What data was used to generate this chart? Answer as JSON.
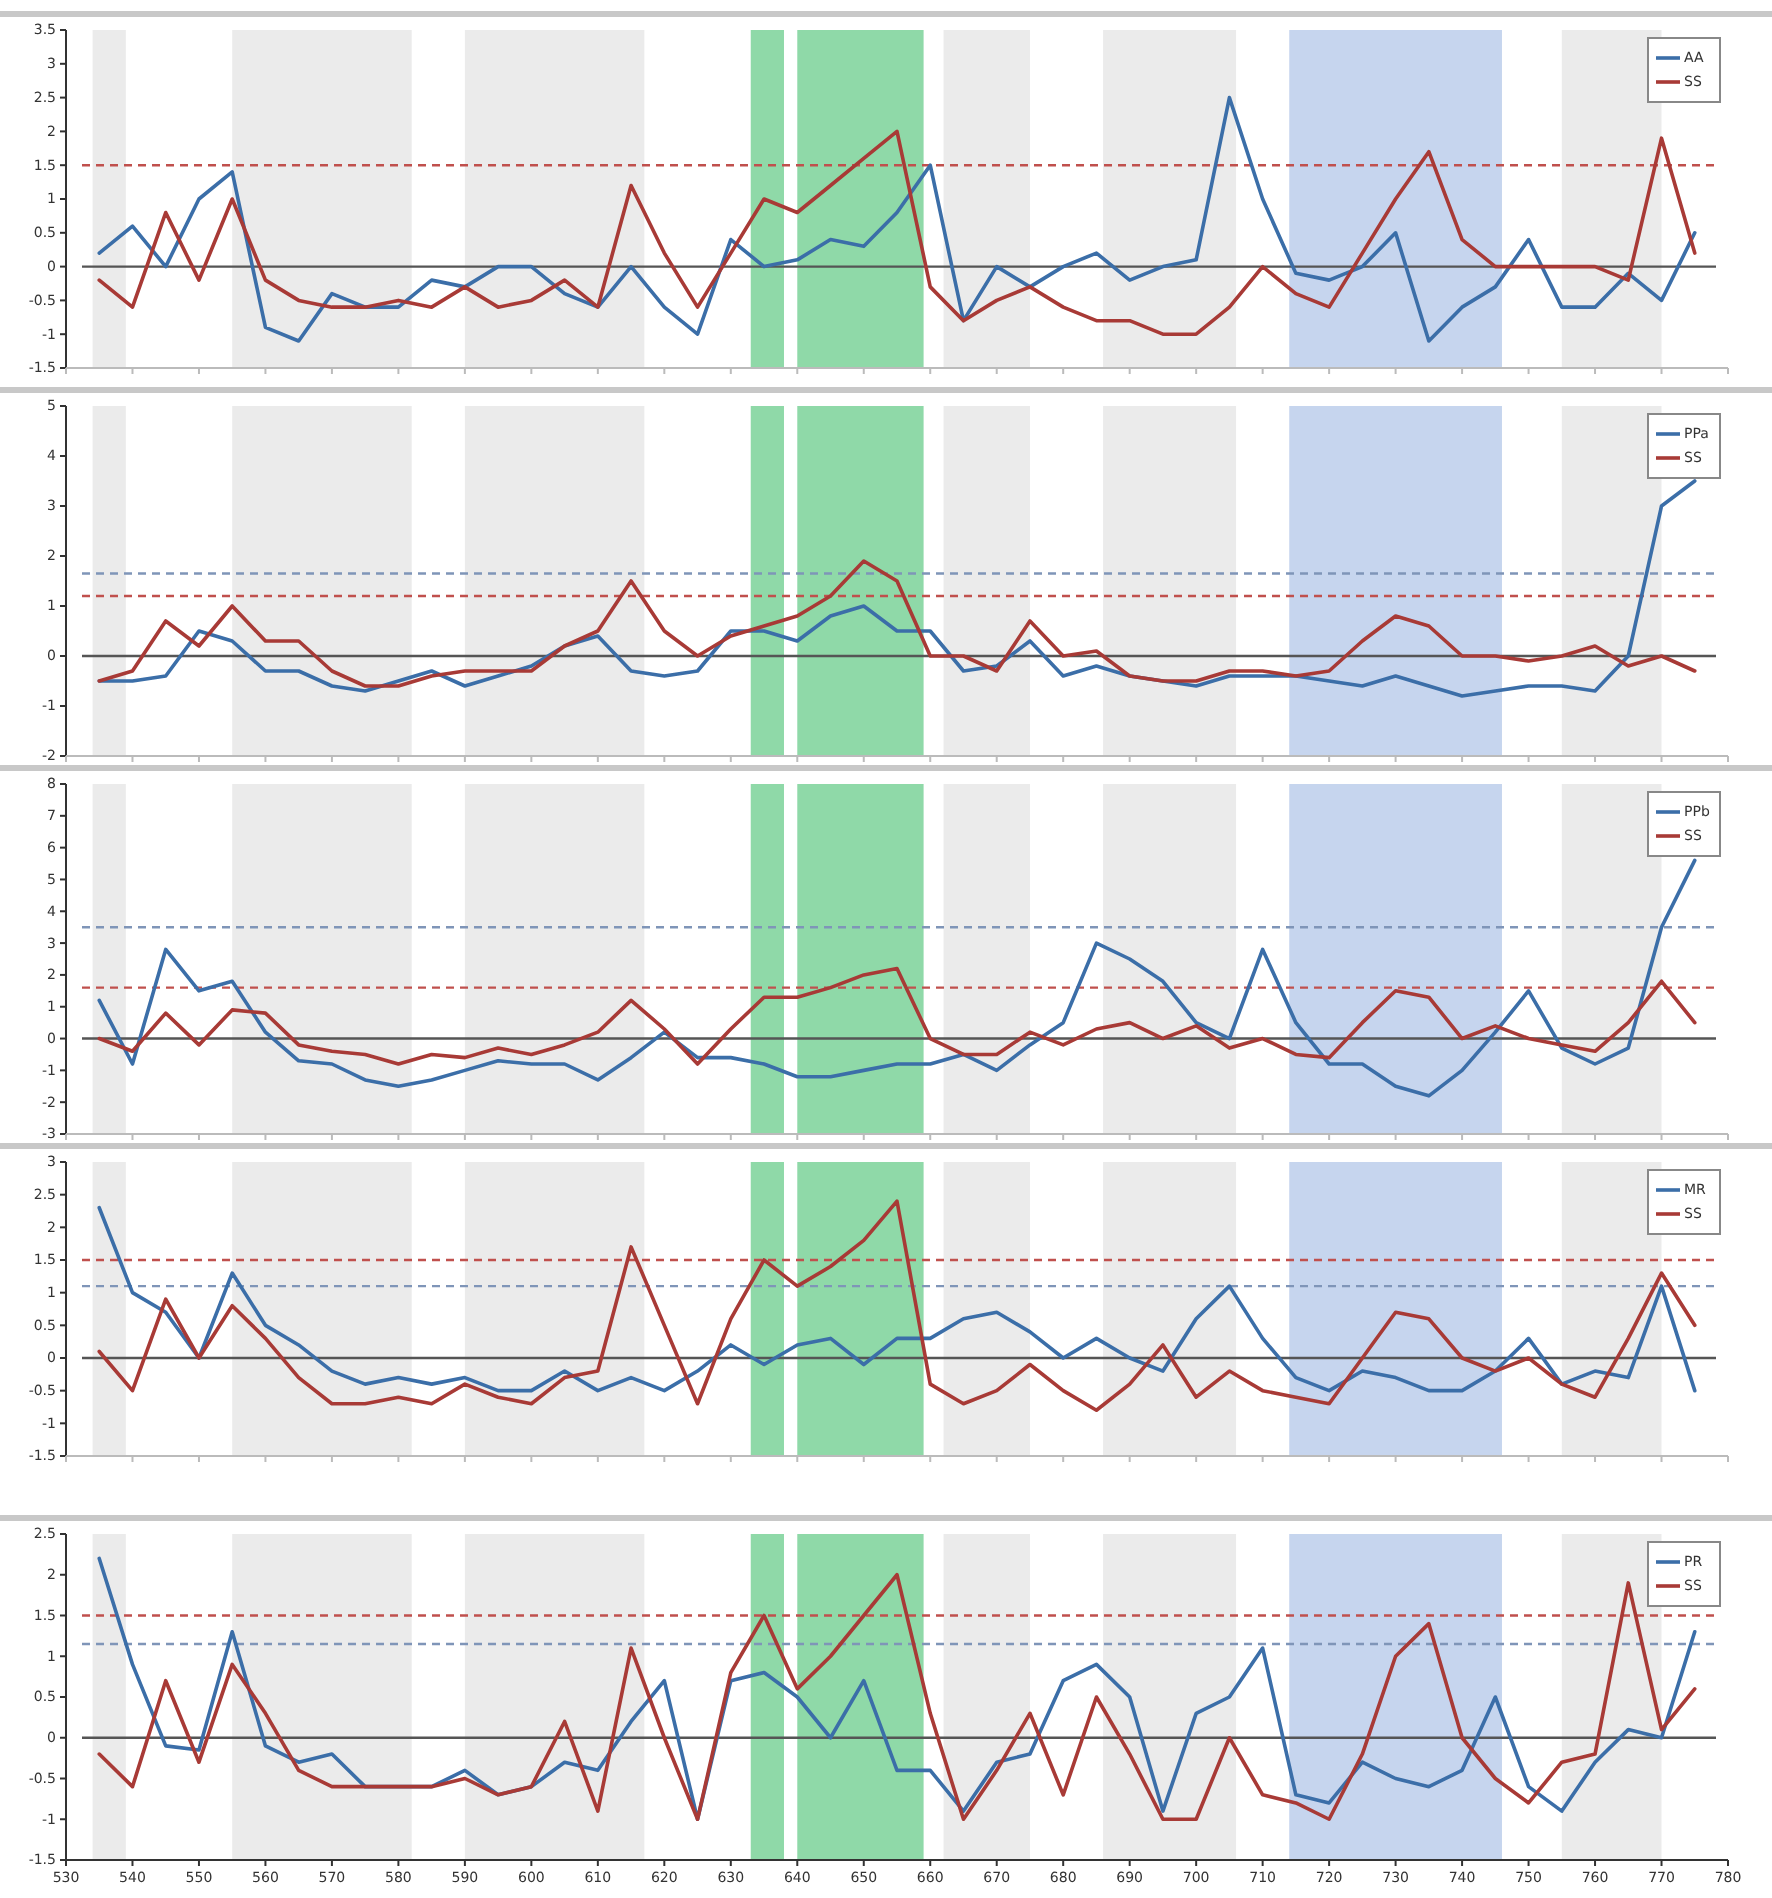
{
  "chart_data": [
    {
      "type": "line",
      "x": [
        535,
        540,
        545,
        550,
        555,
        560,
        565,
        570,
        575,
        580,
        585,
        590,
        595,
        600,
        605,
        610,
        615,
        620,
        625,
        630,
        635,
        640,
        645,
        650,
        655,
        660,
        665,
        670,
        675,
        680,
        685,
        690,
        695,
        700,
        705,
        710,
        715,
        720,
        725,
        730,
        735,
        740,
        745,
        750,
        755,
        760,
        765,
        770,
        775
      ],
      "xlim": [
        530,
        780
      ],
      "xticks": [
        530,
        540,
        550,
        560,
        570,
        580,
        590,
        600,
        610,
        620,
        630,
        640,
        650,
        660,
        670,
        680,
        690,
        700,
        710,
        720,
        730,
        740,
        750,
        760,
        770,
        780
      ],
      "ylim": [
        -1.5,
        3.5
      ],
      "yticks": [
        -1.5,
        -1,
        -0.5,
        0,
        0.5,
        1,
        1.5,
        2,
        2.5,
        3,
        3.5
      ],
      "tick_labels": "y",
      "legend": "top right",
      "series": [
        {
          "name": "AA",
          "color": "#3b6ea8",
          "values": [
            0.2,
            0.6,
            0.0,
            1.0,
            1.4,
            -0.9,
            -1.1,
            -0.4,
            -0.6,
            -0.6,
            -0.2,
            -0.3,
            0.0,
            0.0,
            -0.4,
            -0.6,
            0.0,
            -0.6,
            -1.0,
            0.4,
            0.0,
            0.1,
            0.4,
            0.3,
            0.8,
            1.5,
            -0.8,
            0.0,
            -0.3,
            0.0,
            0.2,
            -0.2,
            0.0,
            0.1,
            2.5,
            1.0,
            -0.1,
            -0.2,
            0.0,
            0.5,
            -1.1,
            -0.6,
            -0.3,
            0.4,
            -0.6,
            -0.6,
            -0.1,
            -0.5,
            0.5
          ]
        },
        {
          "name": "SS",
          "color": "#a83a36",
          "values": [
            -0.2,
            -0.6,
            0.8,
            -0.2,
            1.0,
            -0.2,
            -0.5,
            -0.6,
            -0.6,
            -0.5,
            -0.6,
            -0.3,
            -0.6,
            -0.5,
            -0.2,
            -0.6,
            1.2,
            0.2,
            -0.6,
            0.2,
            1.0,
            0.8,
            1.2,
            1.6,
            2.0,
            -0.3,
            -0.8,
            -0.5,
            -0.3,
            -0.6,
            -0.8,
            -0.8,
            -1.0,
            -1.0,
            -0.6,
            0.0,
            -0.4,
            -0.6,
            0.2,
            1.0,
            1.7,
            0.4,
            0.0,
            0.0,
            0.0,
            0.0,
            -0.2,
            1.9,
            0.2
          ]
        }
      ],
      "ref_lines": [
        {
          "axis": "y",
          "value": 0,
          "color": "#555555",
          "line_style": "solid"
        },
        {
          "axis": "y",
          "value": 1.5,
          "color": "#c0504d",
          "line_style": "dashed"
        }
      ],
      "bands": [
        {
          "axis": "x",
          "from": 534,
          "to": 539,
          "color": "#ebebeb"
        },
        {
          "axis": "x",
          "from": 555,
          "to": 582,
          "color": "#ebebeb"
        },
        {
          "axis": "x",
          "from": 590,
          "to": 617,
          "color": "#ebebeb"
        },
        {
          "axis": "x",
          "from": 633,
          "to": 638,
          "color": "#8fd9a8"
        },
        {
          "axis": "x",
          "from": 640,
          "to": 659,
          "color": "#8fd9a8"
        },
        {
          "axis": "x",
          "from": 662,
          "to": 675,
          "color": "#ebebeb"
        },
        {
          "axis": "x",
          "from": 686,
          "to": 706,
          "color": "#ebebeb"
        },
        {
          "axis": "x",
          "from": 714,
          "to": 746,
          "color": "#c6d5ee"
        },
        {
          "axis": "x",
          "from": 755,
          "to": 770,
          "color": "#ebebeb"
        }
      ]
    },
    {
      "type": "line",
      "x": [
        535,
        540,
        545,
        550,
        555,
        560,
        565,
        570,
        575,
        580,
        585,
        590,
        595,
        600,
        605,
        610,
        615,
        620,
        625,
        630,
        635,
        640,
        645,
        650,
        655,
        660,
        665,
        670,
        675,
        680,
        685,
        690,
        695,
        700,
        705,
        710,
        715,
        720,
        725,
        730,
        735,
        740,
        745,
        750,
        755,
        760,
        765,
        770,
        775
      ],
      "xlim": [
        530,
        780
      ],
      "xticks": [
        530,
        540,
        550,
        560,
        570,
        580,
        590,
        600,
        610,
        620,
        630,
        640,
        650,
        660,
        670,
        680,
        690,
        700,
        710,
        720,
        730,
        740,
        750,
        760,
        770,
        780
      ],
      "ylim": [
        -2,
        5
      ],
      "yticks": [
        -2,
        -1,
        0,
        1,
        2,
        3,
        4,
        5
      ],
      "tick_labels": "y",
      "legend": "top right",
      "series": [
        {
          "name": "PPa",
          "color": "#3b6ea8",
          "values": [
            -0.5,
            -0.5,
            -0.4,
            0.5,
            0.3,
            -0.3,
            -0.3,
            -0.6,
            -0.7,
            -0.5,
            -0.3,
            -0.6,
            -0.4,
            -0.2,
            0.2,
            0.4,
            -0.3,
            -0.4,
            -0.3,
            0.5,
            0.5,
            0.3,
            0.8,
            1.0,
            0.5,
            0.5,
            -0.3,
            -0.2,
            0.3,
            -0.4,
            -0.2,
            -0.4,
            -0.5,
            -0.6,
            -0.4,
            -0.4,
            -0.4,
            -0.5,
            -0.6,
            -0.4,
            -0.6,
            -0.8,
            -0.7,
            -0.6,
            -0.6,
            -0.7,
            0.0,
            3.0,
            3.5
          ]
        },
        {
          "name": "SS",
          "color": "#a83a36",
          "values": [
            -0.5,
            -0.3,
            0.7,
            0.2,
            1.0,
            0.3,
            0.3,
            -0.3,
            -0.6,
            -0.6,
            -0.4,
            -0.3,
            -0.3,
            -0.3,
            0.2,
            0.5,
            1.5,
            0.5,
            0.0,
            0.4,
            0.6,
            0.8,
            1.2,
            1.9,
            1.5,
            0.0,
            0.0,
            -0.3,
            0.7,
            0.0,
            0.1,
            -0.4,
            -0.5,
            -0.5,
            -0.3,
            -0.3,
            -0.4,
            -0.3,
            0.3,
            0.8,
            0.6,
            0.0,
            0.0,
            -0.1,
            0.0,
            0.2,
            -0.2,
            0.0,
            -0.3
          ]
        }
      ],
      "ref_lines": [
        {
          "axis": "y",
          "value": 0,
          "color": "#555555",
          "line_style": "solid"
        },
        {
          "axis": "y",
          "value": 1.65,
          "color": "#7f95b8",
          "line_style": "dashed"
        },
        {
          "axis": "y",
          "value": 1.2,
          "color": "#c0504d",
          "line_style": "dashed"
        }
      ],
      "bands": [
        {
          "axis": "x",
          "from": 534,
          "to": 539,
          "color": "#ebebeb"
        },
        {
          "axis": "x",
          "from": 555,
          "to": 582,
          "color": "#ebebeb"
        },
        {
          "axis": "x",
          "from": 590,
          "to": 617,
          "color": "#ebebeb"
        },
        {
          "axis": "x",
          "from": 633,
          "to": 638,
          "color": "#8fd9a8"
        },
        {
          "axis": "x",
          "from": 640,
          "to": 659,
          "color": "#8fd9a8"
        },
        {
          "axis": "x",
          "from": 662,
          "to": 675,
          "color": "#ebebeb"
        },
        {
          "axis": "x",
          "from": 686,
          "to": 706,
          "color": "#ebebeb"
        },
        {
          "axis": "x",
          "from": 714,
          "to": 746,
          "color": "#c6d5ee"
        },
        {
          "axis": "x",
          "from": 755,
          "to": 770,
          "color": "#ebebeb"
        }
      ]
    },
    {
      "type": "line",
      "x": [
        535,
        540,
        545,
        550,
        555,
        560,
        565,
        570,
        575,
        580,
        585,
        590,
        595,
        600,
        605,
        610,
        615,
        620,
        625,
        630,
        635,
        640,
        645,
        650,
        655,
        660,
        665,
        670,
        675,
        680,
        685,
        690,
        695,
        700,
        705,
        710,
        715,
        720,
        725,
        730,
        735,
        740,
        745,
        750,
        755,
        760,
        765,
        770,
        775
      ],
      "xlim": [
        530,
        780
      ],
      "xticks": [
        530,
        540,
        550,
        560,
        570,
        580,
        590,
        600,
        610,
        620,
        630,
        640,
        650,
        660,
        670,
        680,
        690,
        700,
        710,
        720,
        730,
        740,
        750,
        760,
        770,
        780
      ],
      "ylim": [
        -3,
        8
      ],
      "yticks": [
        -3,
        -2,
        -1,
        0,
        1,
        2,
        3,
        4,
        5,
        6,
        7,
        8
      ],
      "tick_labels": "y",
      "legend": "top right",
      "series": [
        {
          "name": "PPb",
          "color": "#3b6ea8",
          "values": [
            1.2,
            -0.8,
            2.8,
            1.5,
            1.8,
            0.2,
            -0.7,
            -0.8,
            -1.3,
            -1.5,
            -1.3,
            -1.0,
            -0.7,
            -0.8,
            -0.8,
            -1.3,
            -0.6,
            0.2,
            -0.6,
            -0.6,
            -0.8,
            -1.2,
            -1.2,
            -1.0,
            -0.8,
            -0.8,
            -0.5,
            -1.0,
            -0.2,
            0.5,
            3.0,
            2.5,
            1.8,
            0.5,
            0.0,
            2.8,
            0.5,
            -0.8,
            -0.8,
            -1.5,
            -1.8,
            -1.0,
            0.2,
            1.5,
            -0.3,
            -0.8,
            -0.3,
            3.5,
            5.6
          ]
        },
        {
          "name": "SS",
          "color": "#a83a36",
          "values": [
            0.0,
            -0.4,
            0.8,
            -0.2,
            0.9,
            0.8,
            -0.2,
            -0.4,
            -0.5,
            -0.8,
            -0.5,
            -0.6,
            -0.3,
            -0.5,
            -0.2,
            0.2,
            1.2,
            0.3,
            -0.8,
            0.3,
            1.3,
            1.3,
            1.6,
            2.0,
            2.2,
            0.0,
            -0.5,
            -0.5,
            0.2,
            -0.2,
            0.3,
            0.5,
            0.0,
            0.4,
            -0.3,
            0.0,
            -0.5,
            -0.6,
            0.5,
            1.5,
            1.3,
            0.0,
            0.4,
            0.0,
            -0.2,
            -0.4,
            0.5,
            1.8,
            0.5
          ]
        }
      ],
      "ref_lines": [
        {
          "axis": "y",
          "value": 0,
          "color": "#555555",
          "line_style": "solid"
        },
        {
          "axis": "y",
          "value": 3.5,
          "color": "#7f95b8",
          "line_style": "dashed"
        },
        {
          "axis": "y",
          "value": 1.6,
          "color": "#c0504d",
          "line_style": "dashed"
        }
      ],
      "bands": [
        {
          "axis": "x",
          "from": 534,
          "to": 539,
          "color": "#ebebeb"
        },
        {
          "axis": "x",
          "from": 555,
          "to": 582,
          "color": "#ebebeb"
        },
        {
          "axis": "x",
          "from": 590,
          "to": 617,
          "color": "#ebebeb"
        },
        {
          "axis": "x",
          "from": 633,
          "to": 638,
          "color": "#8fd9a8"
        },
        {
          "axis": "x",
          "from": 640,
          "to": 659,
          "color": "#8fd9a8"
        },
        {
          "axis": "x",
          "from": 662,
          "to": 675,
          "color": "#ebebeb"
        },
        {
          "axis": "x",
          "from": 686,
          "to": 706,
          "color": "#ebebeb"
        },
        {
          "axis": "x",
          "from": 714,
          "to": 746,
          "color": "#c6d5ee"
        },
        {
          "axis": "x",
          "from": 755,
          "to": 770,
          "color": "#ebebeb"
        }
      ]
    },
    {
      "type": "line",
      "x": [
        535,
        540,
        545,
        550,
        555,
        560,
        565,
        570,
        575,
        580,
        585,
        590,
        595,
        600,
        605,
        610,
        615,
        620,
        625,
        630,
        635,
        640,
        645,
        650,
        655,
        660,
        665,
        670,
        675,
        680,
        685,
        690,
        695,
        700,
        705,
        710,
        715,
        720,
        725,
        730,
        735,
        740,
        745,
        750,
        755,
        760,
        765,
        770,
        775
      ],
      "xlim": [
        530,
        780
      ],
      "xticks": [
        530,
        540,
        550,
        560,
        570,
        580,
        590,
        600,
        610,
        620,
        630,
        640,
        650,
        660,
        670,
        680,
        690,
        700,
        710,
        720,
        730,
        740,
        750,
        760,
        770,
        780
      ],
      "ylim": [
        -1.5,
        3
      ],
      "yticks": [
        -1.5,
        -1,
        -0.5,
        0,
        0.5,
        1,
        1.5,
        2,
        2.5,
        3
      ],
      "tick_labels": "y",
      "legend": "top right",
      "series": [
        {
          "name": "MR",
          "color": "#3b6ea8",
          "values": [
            2.3,
            1.0,
            0.7,
            0.0,
            1.3,
            0.5,
            0.2,
            -0.2,
            -0.4,
            -0.3,
            -0.4,
            -0.3,
            -0.5,
            -0.5,
            -0.2,
            -0.5,
            -0.3,
            -0.5,
            -0.2,
            0.2,
            -0.1,
            0.2,
            0.3,
            -0.1,
            0.3,
            0.3,
            0.6,
            0.7,
            0.4,
            0.0,
            0.3,
            0.0,
            -0.2,
            0.6,
            1.1,
            0.3,
            -0.3,
            -0.5,
            -0.2,
            -0.3,
            -0.5,
            -0.5,
            -0.2,
            0.3,
            -0.4,
            -0.2,
            -0.3,
            1.1,
            -0.5
          ]
        },
        {
          "name": "SS",
          "color": "#a83a36",
          "values": [
            0.1,
            -0.5,
            0.9,
            0.0,
            0.8,
            0.3,
            -0.3,
            -0.7,
            -0.7,
            -0.6,
            -0.7,
            -0.4,
            -0.6,
            -0.7,
            -0.3,
            -0.2,
            1.7,
            0.5,
            -0.7,
            0.6,
            1.5,
            1.1,
            1.4,
            1.8,
            2.4,
            -0.4,
            -0.7,
            -0.5,
            -0.1,
            -0.5,
            -0.8,
            -0.4,
            0.2,
            -0.6,
            -0.2,
            -0.5,
            -0.6,
            -0.7,
            0.0,
            0.7,
            0.6,
            0.0,
            -0.2,
            0.0,
            -0.4,
            -0.6,
            0.3,
            1.3,
            0.5
          ]
        }
      ],
      "ref_lines": [
        {
          "axis": "y",
          "value": 0,
          "color": "#555555",
          "line_style": "solid"
        },
        {
          "axis": "y",
          "value": 1.5,
          "color": "#c0504d",
          "line_style": "dashed"
        },
        {
          "axis": "y",
          "value": 1.1,
          "color": "#7f95b8",
          "line_style": "dashed"
        }
      ],
      "bands": [
        {
          "axis": "x",
          "from": 534,
          "to": 539,
          "color": "#ebebeb"
        },
        {
          "axis": "x",
          "from": 555,
          "to": 582,
          "color": "#ebebeb"
        },
        {
          "axis": "x",
          "from": 590,
          "to": 617,
          "color": "#ebebeb"
        },
        {
          "axis": "x",
          "from": 633,
          "to": 638,
          "color": "#8fd9a8"
        },
        {
          "axis": "x",
          "from": 640,
          "to": 659,
          "color": "#8fd9a8"
        },
        {
          "axis": "x",
          "from": 662,
          "to": 675,
          "color": "#ebebeb"
        },
        {
          "axis": "x",
          "from": 686,
          "to": 706,
          "color": "#ebebeb"
        },
        {
          "axis": "x",
          "from": 714,
          "to": 746,
          "color": "#c6d5ee"
        },
        {
          "axis": "x",
          "from": 755,
          "to": 770,
          "color": "#ebebeb"
        }
      ]
    },
    {
      "type": "line",
      "x": [
        535,
        540,
        545,
        550,
        555,
        560,
        565,
        570,
        575,
        580,
        585,
        590,
        595,
        600,
        605,
        610,
        615,
        620,
        625,
        630,
        635,
        640,
        645,
        650,
        655,
        660,
        665,
        670,
        675,
        680,
        685,
        690,
        695,
        700,
        705,
        710,
        715,
        720,
        725,
        730,
        735,
        740,
        745,
        750,
        755,
        760,
        765,
        770,
        775
      ],
      "xlim": [
        530,
        780
      ],
      "xticks": [
        530,
        540,
        550,
        560,
        570,
        580,
        590,
        600,
        610,
        620,
        630,
        640,
        650,
        660,
        670,
        680,
        690,
        700,
        710,
        720,
        730,
        740,
        750,
        760,
        770,
        780
      ],
      "ylim": [
        -1.5,
        2.5
      ],
      "yticks": [
        -1.5,
        -1,
        -0.5,
        0,
        0.5,
        1,
        1.5,
        2,
        2.5
      ],
      "legend": "top right",
      "series": [
        {
          "name": "PR",
          "color": "#3b6ea8",
          "values": [
            2.2,
            0.9,
            -0.1,
            -0.15,
            1.3,
            -0.1,
            -0.3,
            -0.2,
            -0.6,
            -0.6,
            -0.6,
            -0.4,
            -0.7,
            -0.6,
            -0.3,
            -0.4,
            0.2,
            0.7,
            -1.0,
            0.7,
            0.8,
            0.5,
            0.0,
            0.7,
            -0.4,
            -0.4,
            -0.9,
            -0.3,
            -0.2,
            0.7,
            0.9,
            0.5,
            -0.9,
            0.3,
            0.5,
            1.1,
            -0.7,
            -0.8,
            -0.3,
            -0.5,
            -0.6,
            -0.4,
            0.5,
            -0.6,
            -0.9,
            -0.3,
            0.1,
            0.0,
            1.3
          ]
        },
        {
          "name": "SS",
          "color": "#a83a36",
          "values": [
            -0.2,
            -0.6,
            0.7,
            -0.3,
            0.9,
            0.3,
            -0.4,
            -0.6,
            -0.6,
            -0.6,
            -0.6,
            -0.5,
            -0.7,
            -0.6,
            0.2,
            -0.9,
            1.1,
            0.0,
            -1.0,
            0.8,
            1.5,
            0.6,
            1.0,
            1.5,
            2.0,
            0.3,
            -1.0,
            -0.4,
            0.3,
            -0.7,
            0.5,
            -0.2,
            -1.0,
            -1.0,
            0.0,
            -0.7,
            -0.8,
            -1.0,
            -0.2,
            1.0,
            1.4,
            0.0,
            -0.5,
            -0.8,
            -0.3,
            -0.2,
            1.9,
            0.1,
            0.6
          ]
        }
      ],
      "ref_lines": [
        {
          "axis": "y",
          "value": 0,
          "color": "#555555",
          "line_style": "solid"
        },
        {
          "axis": "y",
          "value": 1.5,
          "color": "#c0504d",
          "line_style": "dashed"
        },
        {
          "axis": "y",
          "value": 1.15,
          "color": "#7f95b8",
          "line_style": "dashed"
        }
      ],
      "bands": [
        {
          "axis": "x",
          "from": 534,
          "to": 539,
          "color": "#ebebeb"
        },
        {
          "axis": "x",
          "from": 555,
          "to": 582,
          "color": "#ebebeb"
        },
        {
          "axis": "x",
          "from": 590,
          "to": 617,
          "color": "#ebebeb"
        },
        {
          "axis": "x",
          "from": 633,
          "to": 638,
          "color": "#8fd9a8"
        },
        {
          "axis": "x",
          "from": 640,
          "to": 659,
          "color": "#8fd9a8"
        },
        {
          "axis": "x",
          "from": 662,
          "to": 675,
          "color": "#ebebeb"
        },
        {
          "axis": "x",
          "from": 686,
          "to": 706,
          "color": "#ebebeb"
        },
        {
          "axis": "x",
          "from": 714,
          "to": 746,
          "color": "#c6d5ee"
        },
        {
          "axis": "x",
          "from": 755,
          "to": 770,
          "color": "#ebebeb"
        }
      ]
    }
  ]
}
